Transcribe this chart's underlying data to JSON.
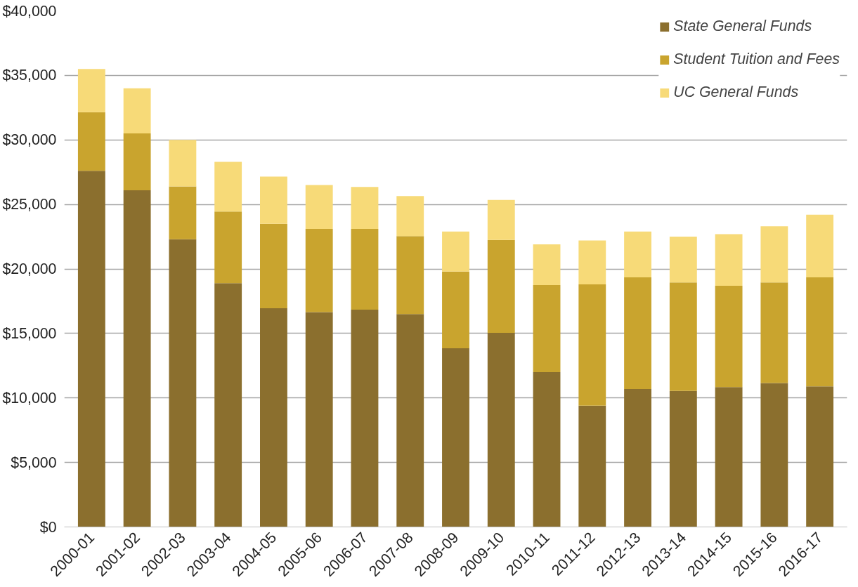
{
  "chart_data": {
    "type": "bar",
    "stacked": true,
    "categories": [
      "2000-01",
      "2001-02",
      "2002-03",
      "2003-04",
      "2004-05",
      "2005-06",
      "2006-07",
      "2007-08",
      "2008-09",
      "2009-10",
      "2010-11",
      "2011-12",
      "2012-13",
      "2013-14",
      "2014-15",
      "2015-16",
      "2016-17"
    ],
    "series": [
      {
        "name": "State General Funds",
        "color": "#8b6f2e",
        "values": [
          27600,
          26100,
          22300,
          18900,
          16950,
          16650,
          16850,
          16500,
          13850,
          15050,
          12000,
          9400,
          10700,
          10550,
          10850,
          11150,
          10900
        ]
      },
      {
        "name": "Student Tuition and Fees",
        "color": "#c9a42e",
        "values": [
          4550,
          4400,
          4100,
          5550,
          6550,
          6450,
          6250,
          6050,
          5950,
          7200,
          6750,
          9400,
          8650,
          8400,
          7850,
          7800,
          8450
        ]
      },
      {
        "name": "UC General Funds",
        "color": "#f7da78",
        "values": [
          3350,
          3500,
          3600,
          3850,
          3650,
          3400,
          3250,
          3100,
          3100,
          3100,
          3150,
          3400,
          3550,
          3550,
          4000,
          4350,
          4850
        ]
      }
    ],
    "ylim": [
      0,
      40000
    ],
    "yticks": [
      {
        "value": 0,
        "label": "$0"
      },
      {
        "value": 5000,
        "label": "$5,000"
      },
      {
        "value": 10000,
        "label": "$10,000"
      },
      {
        "value": 15000,
        "label": "$15,000"
      },
      {
        "value": 20000,
        "label": "$20,000"
      },
      {
        "value": 25000,
        "label": "$25,000"
      },
      {
        "value": 30000,
        "label": "$30,000"
      },
      {
        "value": 35000,
        "label": "$35,000"
      },
      {
        "value": 40000,
        "label": "$40,000"
      }
    ],
    "grid": "y",
    "legend": "top right"
  }
}
